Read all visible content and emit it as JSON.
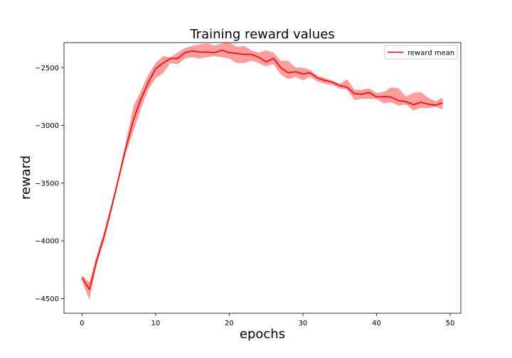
{
  "chart_data": {
    "type": "line",
    "title": "Training reward values",
    "xlabel": "epochs",
    "ylabel": "reward",
    "xlim": [
      -2.45,
      51.45
    ],
    "ylim": [
      -4627,
      -2283
    ],
    "xticks": [
      0,
      10,
      20,
      30,
      40,
      50
    ],
    "yticks": [
      -4500,
      -4000,
      -3500,
      -3000,
      -2500
    ],
    "xtick_labels": [
      "0",
      "10",
      "20",
      "30",
      "40",
      "50"
    ],
    "ytick_labels": [
      "−4500",
      "−4000",
      "−3500",
      "−3000",
      "−2500"
    ],
    "grid": false,
    "legend_position": "top-right",
    "series": [
      {
        "name": "reward mean",
        "color": "#ff0000",
        "band_color": "#ff9c9c",
        "x": [
          0,
          1,
          2,
          3,
          4,
          5,
          6,
          7,
          8,
          9,
          10,
          11,
          12,
          13,
          14,
          15,
          16,
          17,
          18,
          19,
          20,
          21,
          22,
          23,
          24,
          25,
          26,
          27,
          28,
          29,
          30,
          31,
          32,
          33,
          34,
          35,
          36,
          37,
          38,
          39,
          40,
          41,
          42,
          43,
          44,
          45,
          46,
          47,
          48,
          49
        ],
        "mean": [
          -4320,
          -4420,
          -4170,
          -3960,
          -3710,
          -3450,
          -3180,
          -2950,
          -2770,
          -2630,
          -2510,
          -2460,
          -2420,
          -2420,
          -2370,
          -2355,
          -2365,
          -2365,
          -2370,
          -2350,
          -2370,
          -2375,
          -2385,
          -2385,
          -2410,
          -2450,
          -2420,
          -2500,
          -2545,
          -2535,
          -2555,
          -2545,
          -2590,
          -2610,
          -2625,
          -2655,
          -2670,
          -2725,
          -2730,
          -2715,
          -2755,
          -2750,
          -2755,
          -2785,
          -2795,
          -2820,
          -2800,
          -2815,
          -2825,
          -2805
        ],
        "upper": [
          -4300,
          -4360,
          -4120,
          -3920,
          -3680,
          -3420,
          -3130,
          -2830,
          -2700,
          -2560,
          -2460,
          -2400,
          -2410,
          -2370,
          -2330,
          -2310,
          -2300,
          -2290,
          -2310,
          -2290,
          -2280,
          -2320,
          -2310,
          -2350,
          -2370,
          -2350,
          -2370,
          -2440,
          -2440,
          -2500,
          -2500,
          -2520,
          -2570,
          -2590,
          -2610,
          -2640,
          -2600,
          -2690,
          -2690,
          -2680,
          -2720,
          -2710,
          -2670,
          -2680,
          -2750,
          -2720,
          -2710,
          -2760,
          -2790,
          -2760
        ],
        "lower": [
          -4350,
          -4510,
          -4200,
          -4000,
          -3750,
          -3480,
          -3230,
          -3050,
          -2850,
          -2690,
          -2590,
          -2550,
          -2460,
          -2470,
          -2420,
          -2410,
          -2420,
          -2410,
          -2400,
          -2410,
          -2420,
          -2460,
          -2460,
          -2440,
          -2460,
          -2490,
          -2470,
          -2560,
          -2600,
          -2580,
          -2610,
          -2580,
          -2620,
          -2640,
          -2650,
          -2680,
          -2690,
          -2780,
          -2770,
          -2770,
          -2770,
          -2810,
          -2800,
          -2830,
          -2820,
          -2870,
          -2850,
          -2850,
          -2840,
          -2860
        ]
      }
    ]
  }
}
